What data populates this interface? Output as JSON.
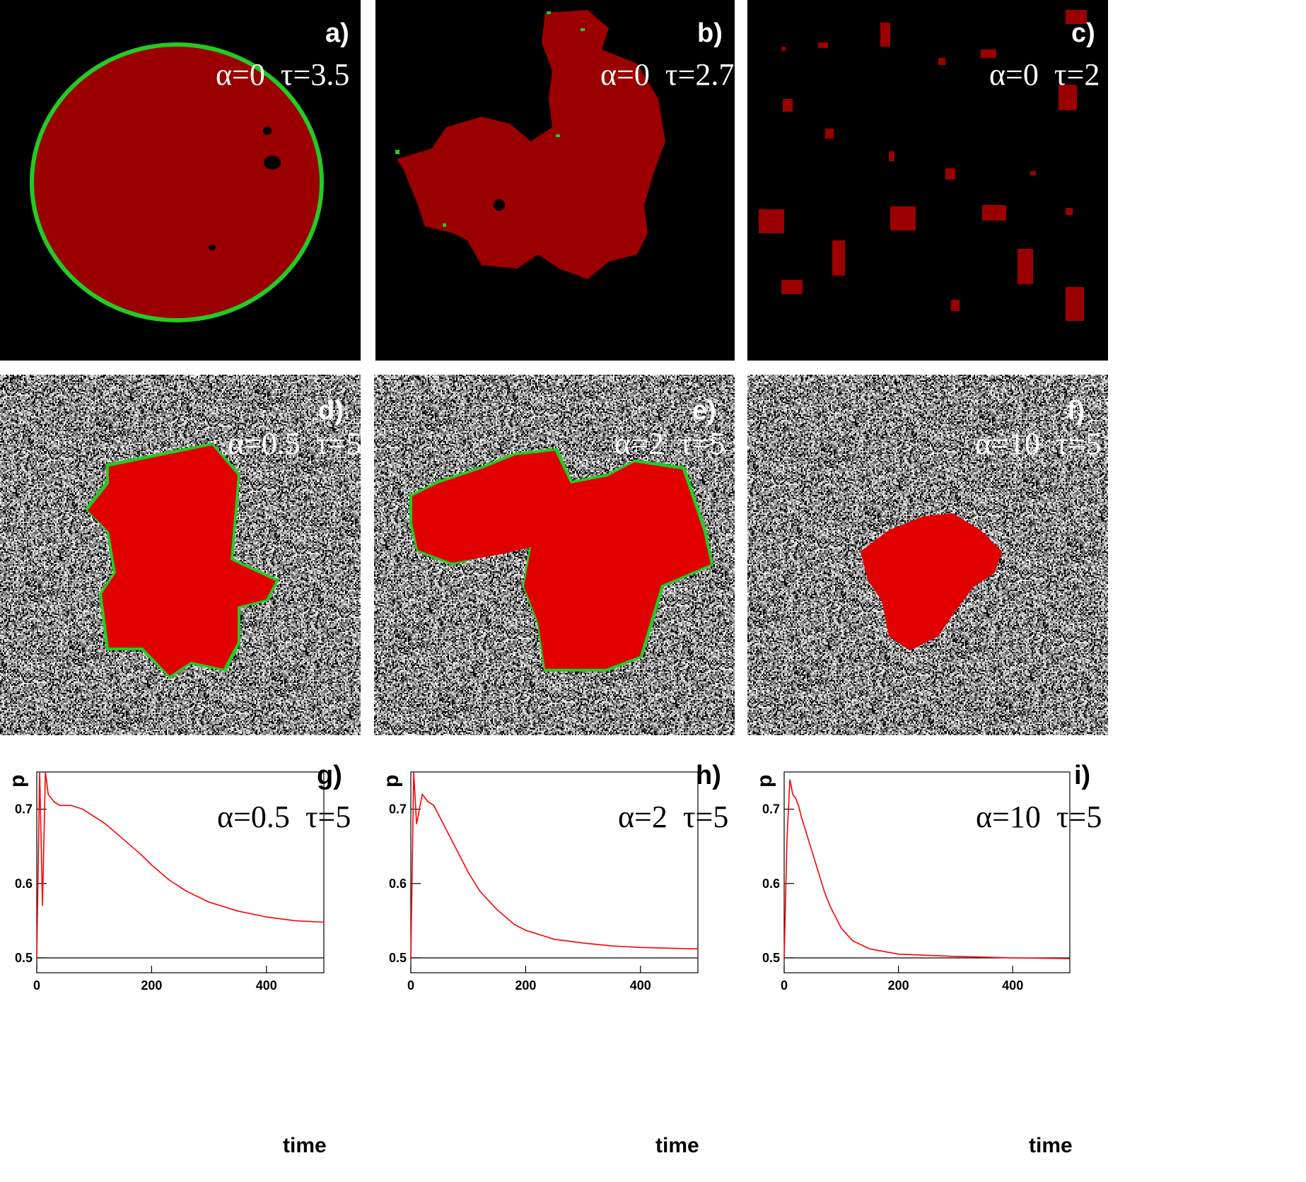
{
  "colors": {
    "cluster_dark": "#9b0000",
    "cluster_bright": "#e00000",
    "front": "#22cc22",
    "curve": "#ff0000"
  },
  "panels": [
    {
      "id": "a",
      "label": "a)",
      "alpha_text": "α=0",
      "tau_text": "τ=3.5",
      "background": "black"
    },
    {
      "id": "b",
      "label": "b)",
      "alpha_text": "α=0",
      "tau_text": "τ=2.7",
      "background": "black"
    },
    {
      "id": "c",
      "label": "c)",
      "alpha_text": "α=0",
      "tau_text": "τ=2",
      "background": "black"
    },
    {
      "id": "d",
      "label": "d)",
      "alpha_text": "α=0.5",
      "tau_text": "τ=5",
      "background": "noise"
    },
    {
      "id": "e",
      "label": "e)",
      "alpha_text": "α=2",
      "tau_text": "τ=5",
      "background": "noise"
    },
    {
      "id": "f",
      "label": "f)",
      "alpha_text": "α=10",
      "tau_text": "τ=5",
      "background": "noise"
    }
  ],
  "chart_data": [
    {
      "type": "line",
      "label": "g)",
      "alpha_text": "α=0.5",
      "tau_text": "τ=5",
      "xlabel": "time",
      "ylabel": "p",
      "xlim": [
        0,
        500
      ],
      "ylim": [
        0.48,
        0.75
      ],
      "xticks": [
        0,
        200,
        400
      ],
      "yticks": [
        0.5,
        0.6,
        0.7
      ],
      "reference_line": 0.5,
      "series": [
        {
          "x": [
            0,
            5,
            10,
            15,
            20,
            30,
            40,
            60,
            80,
            100,
            120,
            150,
            180,
            200,
            230,
            260,
            300,
            350,
            400,
            450,
            500
          ],
          "y": [
            0.5,
            0.75,
            0.57,
            0.75,
            0.72,
            0.71,
            0.705,
            0.705,
            0.7,
            0.69,
            0.68,
            0.66,
            0.64,
            0.625,
            0.605,
            0.59,
            0.575,
            0.563,
            0.555,
            0.55,
            0.548
          ]
        }
      ]
    },
    {
      "type": "line",
      "label": "h)",
      "alpha_text": "α=2",
      "tau_text": "τ=5",
      "xlabel": "time",
      "ylabel": "p",
      "xlim": [
        0,
        500
      ],
      "ylim": [
        0.48,
        0.75
      ],
      "xticks": [
        0,
        200,
        400
      ],
      "yticks": [
        0.5,
        0.6,
        0.7
      ],
      "reference_line": 0.5,
      "series": [
        {
          "x": [
            0,
            5,
            10,
            20,
            30,
            40,
            50,
            60,
            80,
            100,
            120,
            150,
            180,
            200,
            250,
            300,
            350,
            400,
            450,
            500
          ],
          "y": [
            0.5,
            0.75,
            0.68,
            0.72,
            0.71,
            0.705,
            0.69,
            0.675,
            0.645,
            0.615,
            0.59,
            0.565,
            0.545,
            0.537,
            0.525,
            0.52,
            0.516,
            0.514,
            0.513,
            0.512
          ]
        }
      ]
    },
    {
      "type": "line",
      "label": "i)",
      "alpha_text": "α=10",
      "tau_text": "τ=5",
      "xlabel": "time",
      "ylabel": "p",
      "xlim": [
        0,
        500
      ],
      "ylim": [
        0.48,
        0.75
      ],
      "xticks": [
        0,
        200,
        400
      ],
      "yticks": [
        0.5,
        0.6,
        0.7
      ],
      "reference_line": 0.5,
      "series": [
        {
          "x": [
            0,
            5,
            10,
            15,
            20,
            25,
            30,
            40,
            50,
            60,
            70,
            80,
            100,
            120,
            150,
            200,
            300,
            400,
            500
          ],
          "y": [
            0.5,
            0.66,
            0.74,
            0.72,
            0.715,
            0.705,
            0.69,
            0.665,
            0.64,
            0.615,
            0.59,
            0.57,
            0.54,
            0.523,
            0.512,
            0.505,
            0.502,
            0.5,
            0.499
          ]
        }
      ]
    }
  ]
}
